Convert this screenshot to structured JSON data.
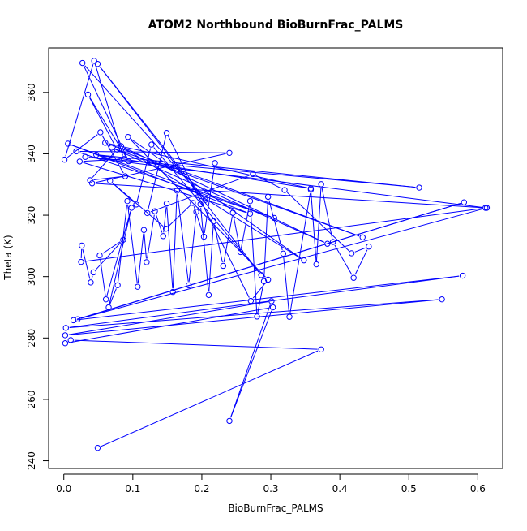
{
  "chart_data": {
    "type": "line",
    "title": "ATOM2 Northbound BioBurnFrac_PALMS",
    "xlabel": "BioBurnFrac_PALMS",
    "ylabel": "Theta (K)",
    "xlim": [
      -0.022,
      0.636
    ],
    "ylim": [
      237.5,
      374.5
    ],
    "x_ticks": [
      0.0,
      0.1,
      0.2,
      0.3,
      0.4,
      0.5,
      0.6
    ],
    "x_tick_labels": [
      "0.0",
      "0.1",
      "0.2",
      "0.3",
      "0.4",
      "0.5",
      "0.6"
    ],
    "y_ticks": [
      240,
      260,
      280,
      300,
      320,
      340,
      360
    ],
    "y_tick_labels": [
      "240",
      "260",
      "280",
      "300",
      "320",
      "340",
      "360"
    ],
    "grid": false,
    "series": [
      {
        "style": "lines+open-circles",
        "color": "#0000ff",
        "points": [
          [
            0.049,
            244.2
          ],
          [
            0.373,
            276.3
          ],
          [
            0.01,
            279.3
          ],
          [
            0.002,
            278.3
          ],
          [
            0.303,
            290.0
          ],
          [
            0.24,
            253.0
          ],
          [
            0.301,
            292.0
          ],
          [
            0.002,
            280.9
          ],
          [
            0.548,
            292.6
          ],
          [
            0.003,
            283.3
          ],
          [
            0.578,
            300.3
          ],
          [
            0.014,
            285.8
          ],
          [
            0.58,
            324.2
          ],
          [
            0.02,
            286.1
          ],
          [
            0.613,
            322.4
          ],
          [
            0.025,
            304.8
          ],
          [
            0.026,
            310.1
          ],
          [
            0.039,
            298.1
          ],
          [
            0.043,
            301.4
          ],
          [
            0.086,
            312.0
          ],
          [
            0.052,
            306.9
          ],
          [
            0.061,
            292.6
          ],
          [
            0.098,
            322.4
          ],
          [
            0.065,
            290.0
          ],
          [
            0.078,
            297.2
          ],
          [
            0.092,
            324.6
          ],
          [
            0.107,
            296.7
          ],
          [
            0.116,
            315.2
          ],
          [
            0.12,
            304.7
          ],
          [
            0.132,
            321.3
          ],
          [
            0.144,
            313.2
          ],
          [
            0.149,
            323.8
          ],
          [
            0.158,
            295.0
          ],
          [
            0.164,
            328.0
          ],
          [
            0.181,
            297.2
          ],
          [
            0.192,
            321.1
          ],
          [
            0.198,
            323.6
          ],
          [
            0.21,
            294.0
          ],
          [
            0.217,
            318.0
          ],
          [
            0.231,
            303.5
          ],
          [
            0.245,
            320.8
          ],
          [
            0.256,
            308.0
          ],
          [
            0.27,
            324.6
          ],
          [
            0.28,
            287.0
          ],
          [
            0.29,
            298.5
          ],
          [
            0.296,
            326.0
          ],
          [
            0.318,
            307.5
          ],
          [
            0.327,
            286.9
          ],
          [
            0.358,
            328.3
          ],
          [
            0.366,
            304.0
          ],
          [
            0.373,
            330.1
          ],
          [
            0.39,
            311.3
          ],
          [
            0.42,
            299.6
          ],
          [
            0.442,
            309.8
          ],
          [
            0.417,
            307.6
          ],
          [
            0.32,
            328.2
          ],
          [
            0.274,
            333.4
          ],
          [
            0.121,
            320.7
          ],
          [
            0.149,
            346.8
          ],
          [
            0.271,
            292.1
          ],
          [
            0.296,
            299.0
          ],
          [
            0.093,
            345.5
          ],
          [
            0.348,
            305.3
          ],
          [
            0.083,
            342.5
          ],
          [
            0.382,
            310.7
          ],
          [
            0.069,
            342.0
          ],
          [
            0.433,
            312.8
          ],
          [
            0.06,
            343.6
          ],
          [
            0.358,
            328.7
          ],
          [
            0.047,
            339.7
          ],
          [
            0.515,
            329.0
          ],
          [
            0.031,
            339.0
          ],
          [
            0.611,
            322.4
          ],
          [
            0.041,
            330.4
          ],
          [
            0.24,
            340.3
          ],
          [
            0.018,
            340.8
          ],
          [
            0.305,
            319.1
          ],
          [
            0.006,
            343.3
          ],
          [
            0.27,
            320.5
          ],
          [
            0.023,
            337.5
          ],
          [
            0.087,
            338.3
          ],
          [
            0.044,
            370.3
          ],
          [
            0.001,
            338.1
          ],
          [
            0.053,
            347.0
          ],
          [
            0.089,
            332.7
          ],
          [
            0.038,
            331.4
          ],
          [
            0.077,
            341.4
          ],
          [
            0.035,
            359.3
          ],
          [
            0.094,
            337.6
          ],
          [
            0.027,
            369.6
          ],
          [
            0.205,
            325.0
          ],
          [
            0.049,
            369.3
          ],
          [
            0.286,
            300.5
          ],
          [
            0.127,
            343.0
          ],
          [
            0.105,
            323.5
          ],
          [
            0.067,
            331.2
          ],
          [
            0.148,
            315.6
          ],
          [
            0.187,
            324.0
          ],
          [
            0.203,
            313.0
          ],
          [
            0.219,
            337.0
          ]
        ]
      }
    ]
  }
}
